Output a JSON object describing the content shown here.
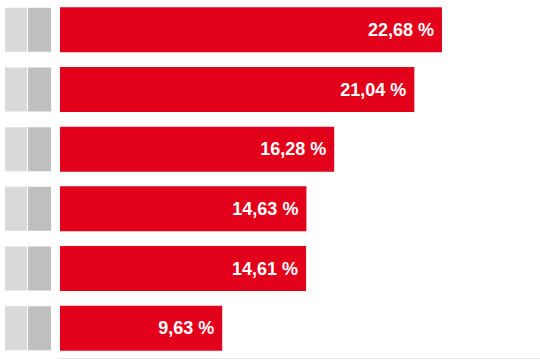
{
  "chart_data": {
    "type": "bar",
    "orientation": "horizontal",
    "categories": [
      null,
      null,
      null,
      null,
      null,
      null
    ],
    "values": [
      22.68,
      21.04,
      16.28,
      14.63,
      14.61,
      9.63
    ],
    "value_labels": [
      "22,68 %",
      "21,04 %",
      "16,28 %",
      "14,63 %",
      "14,61 %",
      "9,63 %"
    ],
    "color": "#e2001a",
    "xlim": [
      0,
      28.5
    ],
    "data_labels": true,
    "tick_labels": false,
    "grid": false
  }
}
